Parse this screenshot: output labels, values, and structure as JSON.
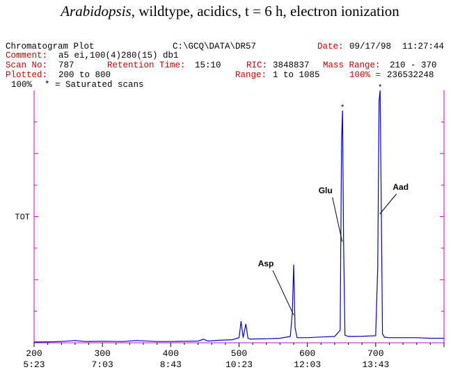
{
  "title": {
    "italic": "Arabidopsis",
    "rest": ", wildtype, acidics, t = 6 h, electron ionization"
  },
  "header": {
    "plot_name": "Chromatogram Plot",
    "path": "C:\\GCQ\\DATA\\DR57",
    "date_label": "Date:",
    "date_value": "09/17/98",
    "time_value": "11:27:44",
    "comment_label": "Comment:",
    "comment_value": "a5 ei,100(4)280(15) db1",
    "scan_label": "Scan No:",
    "scan_value": "787",
    "rt_label": "Retention Time:",
    "rt_value": "15:10",
    "ric_label": "RIC:",
    "ric_value": "3848837",
    "mass_label": "Mass Range:",
    "mass_value": "210 - 370",
    "plotted_label": "Plotted:",
    "plotted_value": "200 to 800",
    "range_label": "Range:",
    "range_value": "1 to 1085",
    "pct_label": "100% =",
    "pct_value": "236532248",
    "top_label": "100%",
    "saturated_note": "* = Saturated scans"
  },
  "colors": {
    "trace": "#0000cc",
    "frame": "#cc00cc",
    "header_red": "#cc0000"
  },
  "chart_data": {
    "type": "line",
    "title": "Chromatogram Plot",
    "ylabel": "TOT",
    "xlim": [
      200,
      800
    ],
    "ylim": [
      0,
      100
    ],
    "x_ticks": [
      {
        "scan": 200,
        "time": "5:23"
      },
      {
        "scan": 300,
        "time": "7:03"
      },
      {
        "scan": 400,
        "time": "8:43"
      },
      {
        "scan": 500,
        "time": "10:23"
      },
      {
        "scan": 600,
        "time": "12:03"
      },
      {
        "scan": 700,
        "time": "13:43"
      }
    ],
    "series": [
      {
        "name": "TOT",
        "x": [
          200,
          230,
          245,
          260,
          275,
          300,
          330,
          350,
          380,
          400,
          420,
          440,
          448,
          455,
          470,
          490,
          500,
          503,
          506,
          510,
          513,
          516,
          540,
          560,
          575,
          578,
          580,
          582,
          585,
          600,
          620,
          640,
          648,
          650,
          651.5,
          653,
          655,
          660,
          680,
          700,
          703,
          705,
          706.5,
          708,
          710,
          713,
          720,
          740,
          760,
          780,
          800
        ],
        "y": [
          0.3,
          0.4,
          0.6,
          0.9,
          0.5,
          0.6,
          0.5,
          0.9,
          0.5,
          0.5,
          0.6,
          0.7,
          1.4,
          0.7,
          1.0,
          1.2,
          2.0,
          8.5,
          2.0,
          7.5,
          1.8,
          1.5,
          1.6,
          1.8,
          2.5,
          12.0,
          31.0,
          6.0,
          2.0,
          2.0,
          2.3,
          2.5,
          5.0,
          80.0,
          92.0,
          40.0,
          3.0,
          2.5,
          2.6,
          2.8,
          30.0,
          96.0,
          100.0,
          60.0,
          3.5,
          2.2,
          2.0,
          2.0,
          2.0,
          1.8,
          1.8
        ]
      }
    ],
    "saturated_markers": [
      {
        "x": 651.5,
        "y": 92.0
      },
      {
        "x": 706.5,
        "y": 100.0
      }
    ],
    "annotations": [
      {
        "label": "Asp",
        "x": 580,
        "y": 11
      },
      {
        "label": "Glu",
        "x": 651,
        "y": 40
      },
      {
        "label": "Aad",
        "x": 706,
        "y": 51
      }
    ]
  }
}
